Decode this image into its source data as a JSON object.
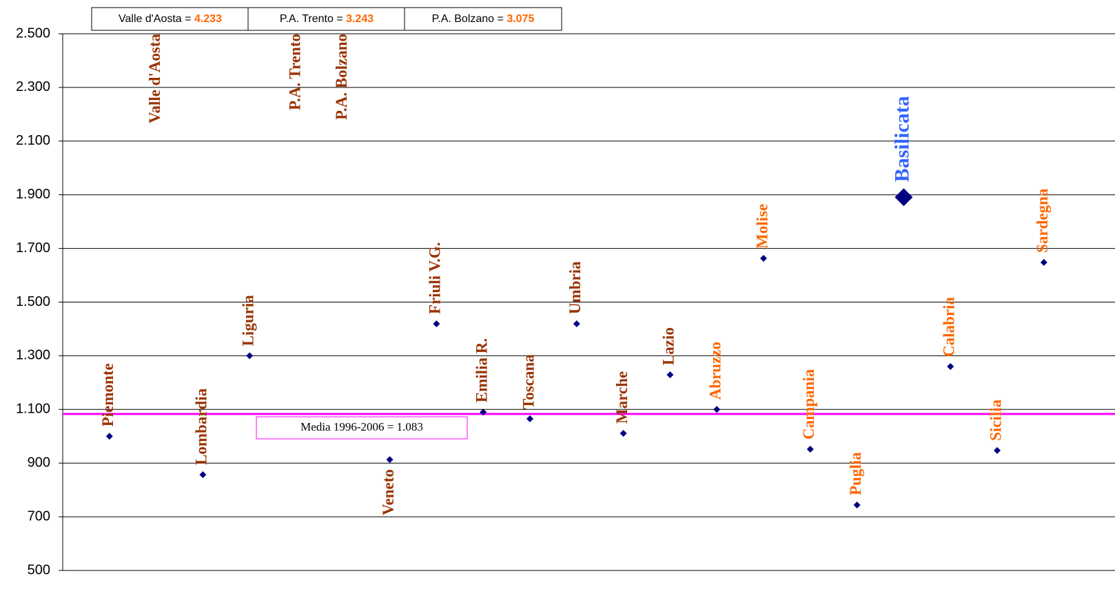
{
  "chart_data": {
    "type": "scatter",
    "categories": [
      "Piemonte",
      "Valle d'Aosta",
      "Lombardia",
      "Liguria",
      "P.A. Trento",
      "P.A. Bolzano",
      "Veneto",
      "Friuli V.G.",
      "Emilia R.",
      "Toscana",
      "Umbria",
      "Marche",
      "Lazio",
      "Abruzzo",
      "Molise",
      "Campania",
      "Puglia",
      "Basilicata",
      "Calabria",
      "Sicilia",
      "Sardegna"
    ],
    "values": [
      1000,
      4233,
      857,
      1300,
      3243,
      3075,
      913,
      1419,
      1090,
      1065,
      1419,
      1011,
      1229,
      1100,
      1663,
      952,
      744,
      1891,
      1260,
      947,
      1648
    ],
    "value_labels": [
      null,
      "4.233",
      null,
      null,
      "3.243",
      "3.075",
      null,
      null,
      null,
      null,
      null,
      null,
      null,
      null,
      null,
      null,
      null,
      null,
      null,
      null,
      null
    ],
    "separator": " = ",
    "color": "#000080",
    "highlight": {
      "index": 17,
      "color": "#3366ff"
    },
    "label_colors": [
      "#993300",
      "#993300",
      "#993300",
      "#993300",
      "#993300",
      "#993300",
      "#993300",
      "#993300",
      "#993300",
      "#993300",
      "#993300",
      "#993300",
      "#993300",
      "#ff6600",
      "#ff6600",
      "#ff6600",
      "#ff6600",
      "#3366ff",
      "#ff6600",
      "#ff6600",
      "#ff6600"
    ],
    "value_label_color": "#ff6600",
    "mean": {
      "value": 1083,
      "label": "Media 1996-2006 = 1.083",
      "color": "#ff00ff"
    },
    "ylim": [
      500,
      2500
    ],
    "yticks": [
      500,
      700,
      900,
      {
        "value": 1100,
        "label": "1.100"
      },
      {
        "value": 1300,
        "label": "1.300"
      },
      {
        "value": 1500,
        "label": "1.500"
      },
      {
        "value": 1700,
        "label": "1.700"
      },
      {
        "value": 1900,
        "label": "1.900"
      },
      {
        "value": 2100,
        "label": "2.100"
      },
      {
        "value": 2300,
        "label": "2.300"
      },
      {
        "value": 2500,
        "label": "2.500"
      }
    ],
    "grid": true
  }
}
